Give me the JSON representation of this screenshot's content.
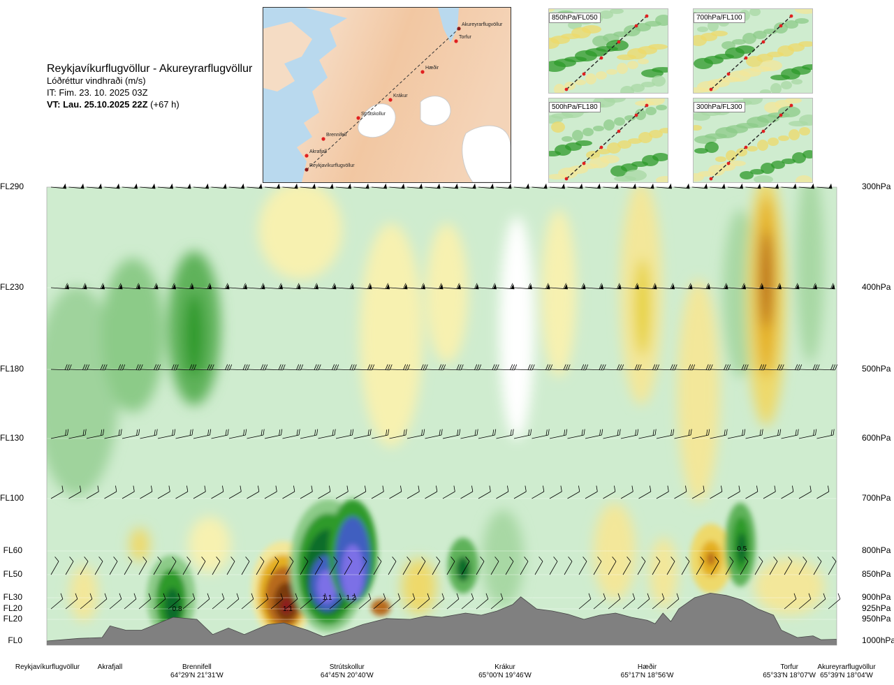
{
  "header": {
    "route": "Reykjavíkurflugvöllur - Akureyrarflugvöllur",
    "parameter": "Lóðréttur vindhraði (m/s)",
    "issue_time": "IT: Fim. 23. 10. 2025 03Z",
    "valid_time": "VT: Lau. 25.10.2025 22Z",
    "lead_time": "(+67 h)"
  },
  "route_map": {
    "labels": [
      "Akureyrarflugvöllur",
      "Torfur",
      "Hæðir",
      "Krákur",
      "Strútskollur",
      "Brennifell",
      "Akrafjall",
      "Reykjavíkurflugvöllur"
    ]
  },
  "insets": [
    {
      "label": "850hPa/FL050"
    },
    {
      "label": "700hPa/FL100"
    },
    {
      "label": "500hPa/FL180"
    },
    {
      "label": "300hPa/FL300"
    }
  ],
  "chart_data": {
    "type": "heatmap",
    "title": "Lóðréttur vindhraði (m/s)",
    "y_left_labels": [
      "FL290",
      "FL230",
      "FL180",
      "FL130",
      "FL100",
      "FL60",
      "FL50",
      "FL30",
      "FL20",
      "FL20",
      "FL0"
    ],
    "y_right_labels": [
      "300hPa",
      "400hPa",
      "500hPa",
      "600hPa",
      "700hPa",
      "800hPa",
      "850hPa",
      "900hPa",
      "925hPa",
      "950hPa",
      "1000hPa"
    ],
    "pressure_levels_hpa": [
      300,
      400,
      500,
      600,
      700,
      800,
      850,
      900,
      925,
      950,
      1000
    ],
    "locations": [
      {
        "name": "Reykjavíkurflugvöllur",
        "coord": "",
        "dist": 0.0
      },
      {
        "name": "Akrafjall",
        "coord": "",
        "dist": 0.08
      },
      {
        "name": "Brennifell",
        "coord": "64°29'N 21°31'W",
        "dist": 0.19
      },
      {
        "name": "Strútskollur",
        "coord": "64°45'N 20°40'W",
        "dist": 0.38
      },
      {
        "name": "Krákur",
        "coord": "65°00'N 19°46'W",
        "dist": 0.58
      },
      {
        "name": "Hæðir",
        "coord": "65°17'N 18°56'W",
        "dist": 0.76
      },
      {
        "name": "Torfur",
        "coord": "65°33'N 18°07'W",
        "dist": 0.94
      },
      {
        "name": "Akureyrarflugvöllur",
        "coord": "65°39'N 18°04'W",
        "dist": 1.0
      }
    ],
    "annotations": [
      {
        "text": "0.8",
        "dist": 0.165,
        "pressure": 930
      },
      {
        "text": "1.1",
        "dist": 0.305,
        "pressure": 930
      },
      {
        "text": "1.1",
        "dist": 0.355,
        "pressure": 905
      },
      {
        "text": "1.2",
        "dist": 0.385,
        "pressure": 905
      },
      {
        "text": "0.5",
        "dist": 0.88,
        "pressure": 800
      }
    ],
    "terrain_hpa": [
      [
        0.0,
        1000
      ],
      [
        0.04,
        994
      ],
      [
        0.07,
        992
      ],
      [
        0.08,
        965
      ],
      [
        0.1,
        975
      ],
      [
        0.12,
        975
      ],
      [
        0.14,
        960
      ],
      [
        0.16,
        945
      ],
      [
        0.19,
        950
      ],
      [
        0.21,
        985
      ],
      [
        0.23,
        970
      ],
      [
        0.25,
        985
      ],
      [
        0.28,
        962
      ],
      [
        0.3,
        958
      ],
      [
        0.33,
        975
      ],
      [
        0.35,
        990
      ],
      [
        0.38,
        975
      ],
      [
        0.4,
        962
      ],
      [
        0.43,
        948
      ],
      [
        0.46,
        950
      ],
      [
        0.48,
        942
      ],
      [
        0.5,
        945
      ],
      [
        0.53,
        935
      ],
      [
        0.55,
        940
      ],
      [
        0.57,
        930
      ],
      [
        0.59,
        915
      ],
      [
        0.6,
        898
      ],
      [
        0.62,
        925
      ],
      [
        0.64,
        930
      ],
      [
        0.66,
        938
      ],
      [
        0.68,
        950
      ],
      [
        0.7,
        940
      ],
      [
        0.72,
        935
      ],
      [
        0.74,
        945
      ],
      [
        0.76,
        952
      ],
      [
        0.77,
        960
      ],
      [
        0.78,
        935
      ],
      [
        0.79,
        955
      ],
      [
        0.8,
        925
      ],
      [
        0.82,
        900
      ],
      [
        0.84,
        890
      ],
      [
        0.86,
        895
      ],
      [
        0.88,
        905
      ],
      [
        0.9,
        925
      ],
      [
        0.92,
        940
      ],
      [
        0.93,
        975
      ],
      [
        0.95,
        992
      ],
      [
        0.97,
        988
      ],
      [
        0.98,
        997
      ],
      [
        1.0,
        996
      ]
    ],
    "wind_rows_hpa": [
      300,
      400,
      500,
      600,
      700,
      850,
      925
    ],
    "legend": "none",
    "grid": false
  }
}
